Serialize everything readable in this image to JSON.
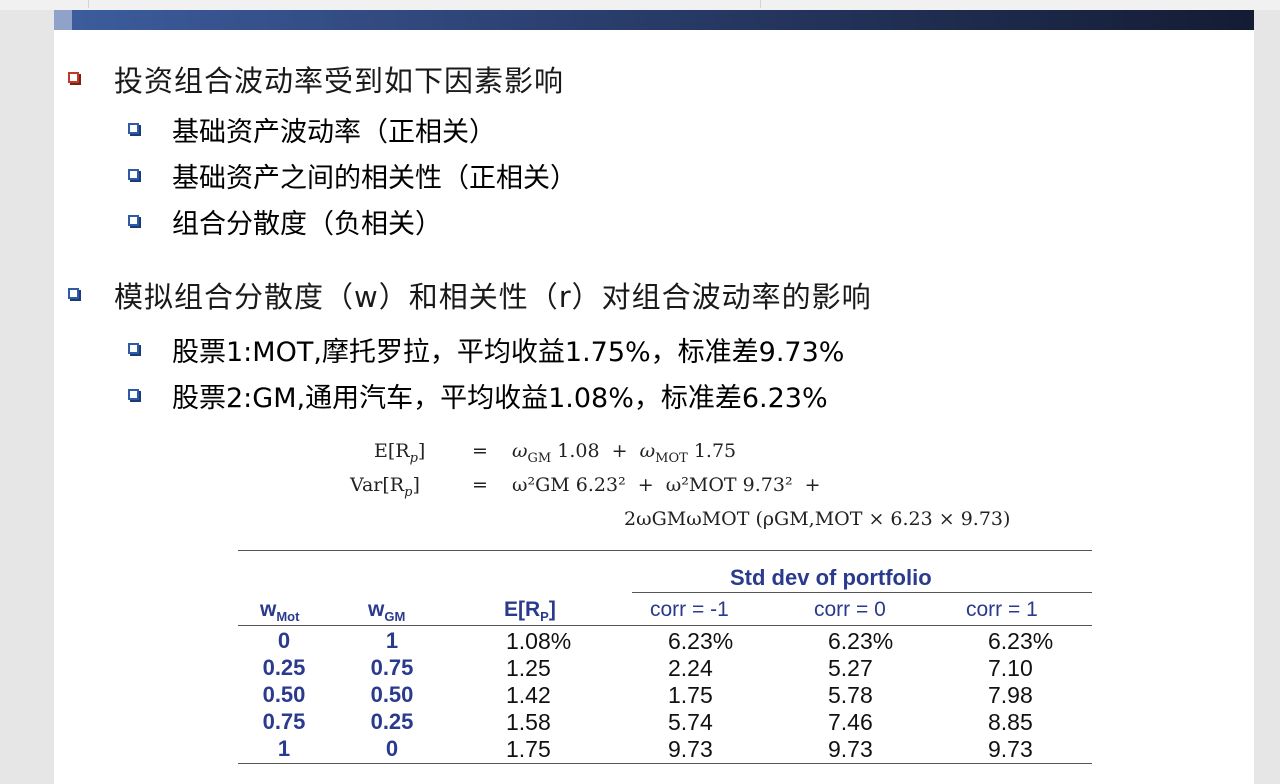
{
  "slide": {
    "bullets": [
      {
        "level": 1,
        "text": "投资组合波动率受到如下因素影响",
        "box_color": "#c0392b"
      },
      {
        "level": 2,
        "text": "基础资产波动率（正相关）"
      },
      {
        "level": 2,
        "text": "基础资产之间的相关性（正相关）"
      },
      {
        "level": 2,
        "text": "组合分散度（负相关）"
      },
      {
        "level": 1,
        "text": "模拟组合分散度（w）和相关性（r）对组合波动率的影响",
        "box_color": "#2e5aa8"
      },
      {
        "level": 2,
        "text": "股票1:MOT,摩托罗拉，平均收益1.75%，标准差9.73%"
      },
      {
        "level": 2,
        "text": "股票2:GM,通用汽车，平均收益1.08%，标准差6.23%"
      }
    ],
    "formula": {
      "line1_lhs": "E[R",
      "line1_lhs_sub": "p",
      "line1_rhs_a": "ω",
      "line1_rhs_a_sub": "GM",
      "line1_rhs_a_val": "1.08",
      "line1_rhs_b": "ω",
      "line1_rhs_b_sub": "MOT",
      "line1_rhs_b_val": "1.75",
      "line2_lhs": "Var[R",
      "line2_lhs_sub": "p",
      "line2_term1": "ω²GM 6.23²",
      "line2_term2": "ω²MOT 9.73²",
      "line3": "2ωGMωMOT (ρGM,MOT × 6.23 × 9.73)"
    },
    "table": {
      "group_header": "Std dev of portfolio",
      "columns": [
        "w",
        "w",
        "E[R",
        "corr = -1",
        "corr = 0",
        "corr = 1"
      ],
      "column_subs": [
        "Mot",
        "GM",
        "P",
        "",
        "",
        ""
      ],
      "column_suffix": [
        "",
        "",
        "]",
        "",
        "",
        ""
      ],
      "rows": [
        [
          "0",
          "1",
          "1.08%",
          "6.23%",
          "6.23%",
          "6.23%"
        ],
        [
          "0.25",
          "0.75",
          "1.25",
          "2.24",
          "5.27",
          "7.10"
        ],
        [
          "0.50",
          "0.50",
          "1.42",
          "1.75",
          "5.78",
          "7.98"
        ],
        [
          "0.75",
          "0.25",
          "1.58",
          "5.74",
          "7.46",
          "8.85"
        ],
        [
          "1",
          "0",
          "1.75",
          "9.73",
          "9.73",
          "9.73"
        ]
      ]
    },
    "colors": {
      "header_bar_start": "#3d5d9e",
      "header_bar_end": "#141c34",
      "table_header_text": "#2a3a8c",
      "level1_box_red": "#c0392b",
      "bullet_box_blue": "#2e5aa8"
    }
  }
}
